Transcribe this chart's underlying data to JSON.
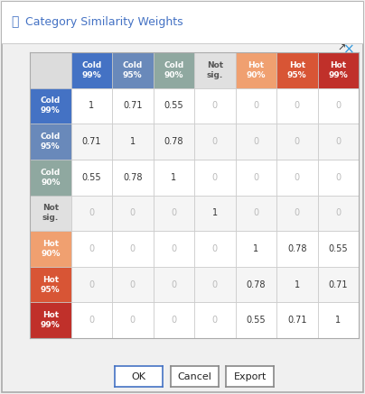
{
  "title": "Category Similarity Weights",
  "col_labels": [
    "Cold\n99%",
    "Cold\n95%",
    "Cold\n90%",
    "Not\nsig.",
    "Hot\n90%",
    "Hot\n95%",
    "Hot\n99%"
  ],
  "row_labels": [
    "Cold\n99%",
    "Cold\n95%",
    "Cold\n90%",
    "Not\nsig.",
    "Hot\n90%",
    "Hot\n95%",
    "Hot\n99%"
  ],
  "matrix": [
    [
      1,
      0.71,
      0.55,
      0,
      0,
      0,
      0
    ],
    [
      0.71,
      1,
      0.78,
      0,
      0,
      0,
      0
    ],
    [
      0.55,
      0.78,
      1,
      0,
      0,
      0,
      0
    ],
    [
      0,
      0,
      0,
      1,
      0,
      0,
      0
    ],
    [
      0,
      0,
      0,
      0,
      1,
      0.78,
      0.55
    ],
    [
      0,
      0,
      0,
      0,
      0.78,
      1,
      0.71
    ],
    [
      0,
      0,
      0,
      0,
      0.55,
      0.71,
      1
    ]
  ],
  "col_header_colors": [
    "#4472C4",
    "#6989BA",
    "#8FA8A0",
    "#E0E0E0",
    "#F0A070",
    "#D85535",
    "#C0302A"
  ],
  "row_header_colors": [
    "#4472C4",
    "#6989BA",
    "#8FA8A0",
    "#E0E0E0",
    "#F0A070",
    "#D85535",
    "#C0302A"
  ],
  "col_header_text_colors": [
    "#FFFFFF",
    "#FFFFFF",
    "#FFFFFF",
    "#555555",
    "#FFFFFF",
    "#FFFFFF",
    "#FFFFFF"
  ],
  "row_header_text_colors": [
    "#FFFFFF",
    "#FFFFFF",
    "#FFFFFF",
    "#555555",
    "#FFFFFF",
    "#FFFFFF",
    "#FFFFFF"
  ],
  "grid_color": "#C8C8C8",
  "bg_color": "#F0F0F0",
  "dialog_bg": "#F0F0F0",
  "border_color": "#AAAAAA",
  "title_color": "#4472C4",
  "button_labels": [
    "OK",
    "Cancel",
    "Export"
  ],
  "ok_border_color": "#4472C4",
  "other_btn_border_color": "#888888",
  "cell_bg_white": "#FFFFFF",
  "cell_bg_light": "#EFEFEF",
  "corner_bg": "#DCDCDC",
  "active_text": "#333333",
  "inactive_text": "#AAAAAA",
  "zero_text": "#BBBBBB"
}
